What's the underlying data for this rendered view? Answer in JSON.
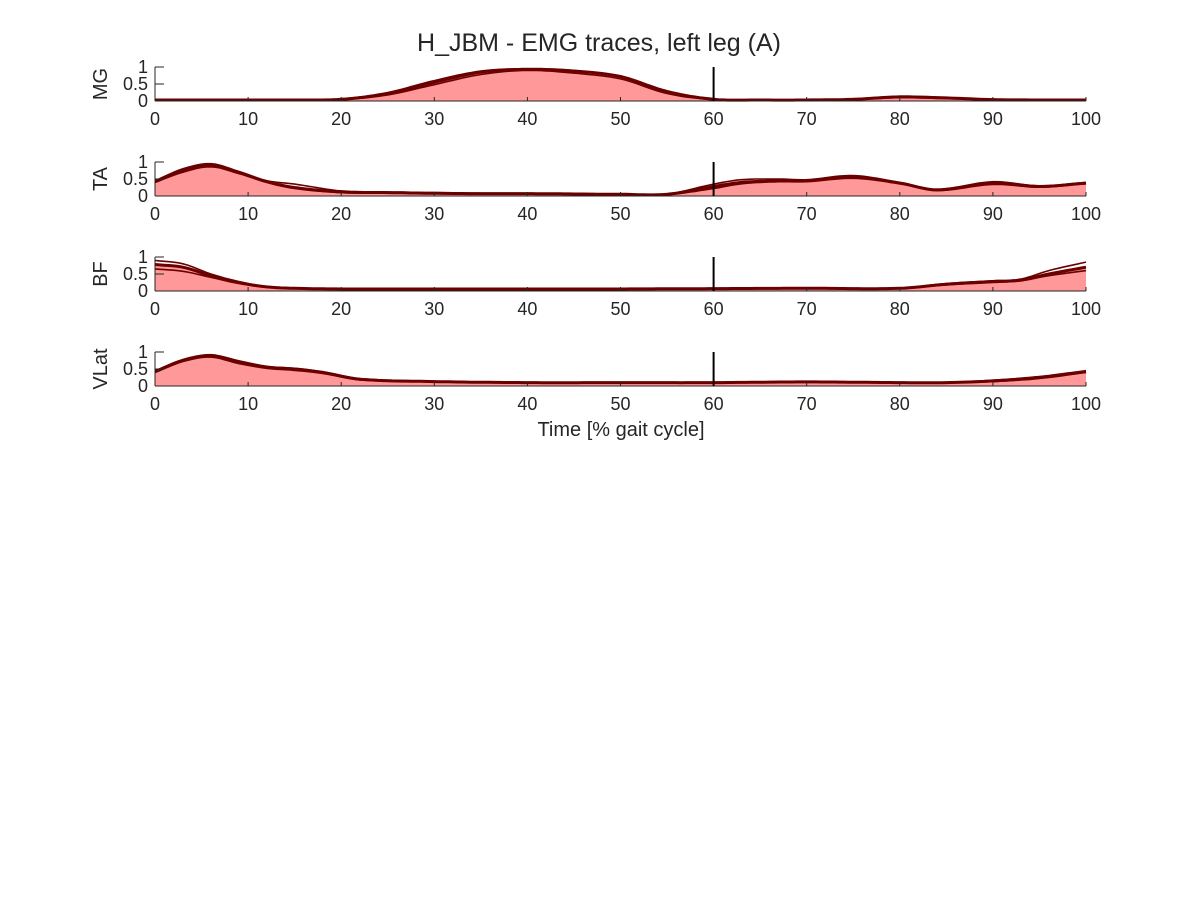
{
  "figure": {
    "title": "H_JBM - EMG traces, left leg (A)",
    "xlabel": "Time [% gait cycle]"
  },
  "colors": {
    "fill": "#ff9999",
    "trace": "#6b0000",
    "axis": "#262626",
    "event_line": "#000000"
  },
  "chart_data": [
    {
      "type": "area",
      "ylabel": "MG",
      "xlim": [
        0,
        100
      ],
      "ylim": [
        0,
        1
      ],
      "xticks": [
        0,
        10,
        20,
        30,
        40,
        50,
        60,
        70,
        80,
        90,
        100
      ],
      "yticks": [
        0,
        0.5,
        1
      ],
      "ytick_labels": [
        "0",
        "0.5",
        "1"
      ],
      "event_x": 60,
      "x": [
        0,
        5,
        10,
        15,
        20,
        25,
        30,
        35,
        40,
        45,
        50,
        55,
        60,
        65,
        70,
        75,
        80,
        85,
        90,
        95,
        100
      ],
      "series": [
        {
          "values": [
            0.03,
            0.03,
            0.03,
            0.03,
            0.05,
            0.22,
            0.55,
            0.85,
            0.93,
            0.88,
            0.72,
            0.28,
            0.05,
            0.03,
            0.03,
            0.05,
            0.12,
            0.09,
            0.04,
            0.03,
            0.03
          ]
        },
        {
          "values": [
            0.04,
            0.04,
            0.03,
            0.03,
            0.06,
            0.25,
            0.6,
            0.88,
            0.95,
            0.9,
            0.7,
            0.25,
            0.05,
            0.04,
            0.03,
            0.06,
            0.14,
            0.1,
            0.05,
            0.04,
            0.04
          ]
        },
        {
          "values": [
            0.03,
            0.03,
            0.02,
            0.03,
            0.04,
            0.18,
            0.48,
            0.78,
            0.9,
            0.82,
            0.65,
            0.22,
            0.04,
            0.03,
            0.02,
            0.04,
            0.1,
            0.07,
            0.04,
            0.03,
            0.03
          ]
        }
      ]
    },
    {
      "type": "area",
      "ylabel": "TA",
      "xlim": [
        0,
        100
      ],
      "ylim": [
        0,
        1
      ],
      "xticks": [
        0,
        10,
        20,
        30,
        40,
        50,
        60,
        70,
        80,
        90,
        100
      ],
      "yticks": [
        0,
        0.5,
        1
      ],
      "ytick_labels": [
        "0",
        "0.5",
        "1"
      ],
      "event_x": 60,
      "x": [
        0,
        3,
        6,
        9,
        12,
        15,
        20,
        25,
        30,
        35,
        40,
        45,
        50,
        55,
        60,
        63,
        67,
        70,
        75,
        80,
        84,
        90,
        95,
        100
      ],
      "series": [
        {
          "values": [
            0.42,
            0.75,
            0.9,
            0.7,
            0.42,
            0.25,
            0.12,
            0.1,
            0.08,
            0.07,
            0.07,
            0.06,
            0.05,
            0.05,
            0.28,
            0.4,
            0.45,
            0.45,
            0.56,
            0.38,
            0.18,
            0.38,
            0.28,
            0.38
          ]
        },
        {
          "values": [
            0.45,
            0.8,
            0.95,
            0.72,
            0.45,
            0.35,
            0.15,
            0.12,
            0.1,
            0.08,
            0.08,
            0.07,
            0.06,
            0.06,
            0.35,
            0.48,
            0.5,
            0.48,
            0.6,
            0.4,
            0.2,
            0.42,
            0.3,
            0.4
          ]
        },
        {
          "values": [
            0.4,
            0.7,
            0.86,
            0.66,
            0.4,
            0.22,
            0.1,
            0.09,
            0.07,
            0.06,
            0.06,
            0.05,
            0.04,
            0.04,
            0.22,
            0.36,
            0.42,
            0.42,
            0.52,
            0.36,
            0.16,
            0.34,
            0.26,
            0.36
          ]
        }
      ]
    },
    {
      "type": "area",
      "ylabel": "BF",
      "xlim": [
        0,
        100
      ],
      "ylim": [
        0,
        1
      ],
      "xticks": [
        0,
        10,
        20,
        30,
        40,
        50,
        60,
        70,
        80,
        90,
        100
      ],
      "yticks": [
        0,
        0.5,
        1
      ],
      "ytick_labels": [
        "0",
        "0.5",
        "1"
      ],
      "event_x": 60,
      "x": [
        0,
        3,
        6,
        9,
        12,
        15,
        20,
        30,
        40,
        50,
        60,
        70,
        80,
        85,
        90,
        93,
        96,
        100
      ],
      "series": [
        {
          "values": [
            0.78,
            0.7,
            0.45,
            0.25,
            0.12,
            0.08,
            0.06,
            0.06,
            0.06,
            0.06,
            0.07,
            0.08,
            0.08,
            0.2,
            0.28,
            0.32,
            0.5,
            0.7
          ]
        },
        {
          "values": [
            0.9,
            0.8,
            0.5,
            0.28,
            0.13,
            0.09,
            0.07,
            0.07,
            0.07,
            0.07,
            0.08,
            0.09,
            0.09,
            0.22,
            0.3,
            0.35,
            0.6,
            0.85
          ]
        },
        {
          "values": [
            0.65,
            0.58,
            0.4,
            0.22,
            0.11,
            0.07,
            0.05,
            0.05,
            0.05,
            0.05,
            0.06,
            0.07,
            0.07,
            0.18,
            0.25,
            0.3,
            0.45,
            0.6
          ]
        }
      ]
    },
    {
      "type": "area",
      "ylabel": "VLat",
      "xlim": [
        0,
        100
      ],
      "ylim": [
        0,
        1
      ],
      "xticks": [
        0,
        10,
        20,
        30,
        40,
        50,
        60,
        70,
        80,
        90,
        100
      ],
      "yticks": [
        0,
        0.5,
        1
      ],
      "ytick_labels": [
        "0",
        "0.5",
        "1"
      ],
      "event_x": 60,
      "x": [
        0,
        3,
        6,
        9,
        12,
        15,
        18,
        22,
        30,
        40,
        50,
        60,
        70,
        80,
        85,
        90,
        95,
        100
      ],
      "series": [
        {
          "values": [
            0.42,
            0.75,
            0.88,
            0.7,
            0.55,
            0.5,
            0.4,
            0.2,
            0.13,
            0.1,
            0.1,
            0.1,
            0.12,
            0.1,
            0.1,
            0.15,
            0.25,
            0.42
          ]
        },
        {
          "values": [
            0.45,
            0.78,
            0.92,
            0.74,
            0.58,
            0.52,
            0.42,
            0.22,
            0.14,
            0.11,
            0.11,
            0.11,
            0.13,
            0.11,
            0.11,
            0.17,
            0.28,
            0.45
          ]
        },
        {
          "values": [
            0.4,
            0.72,
            0.85,
            0.66,
            0.52,
            0.46,
            0.37,
            0.18,
            0.12,
            0.09,
            0.09,
            0.09,
            0.11,
            0.09,
            0.09,
            0.13,
            0.22,
            0.4
          ]
        }
      ]
    }
  ]
}
